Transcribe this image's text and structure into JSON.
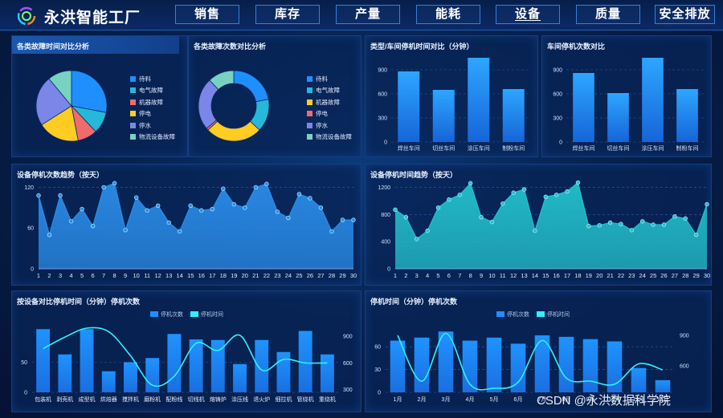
{
  "header": {
    "brand": "永洪智能工厂",
    "nav": [
      {
        "label": "销售",
        "active": false
      },
      {
        "label": "库存",
        "active": false
      },
      {
        "label": "产量",
        "active": false
      },
      {
        "label": "能耗",
        "active": false
      },
      {
        "label": "设备",
        "active": true
      },
      {
        "label": "质量",
        "active": false
      },
      {
        "label": "安全排放",
        "active": false
      }
    ]
  },
  "colors": {
    "bar": "#1e8fff",
    "area_blue": "#2a8ce8",
    "area_teal": "#23c1cc",
    "cyan_line": "#2ef2ff"
  },
  "watermark": "CSDN @永洪数据科学院",
  "chart_data": [
    {
      "id": "fault-time-pie",
      "type": "pie",
      "title": "各类故障时间对比分析",
      "legend": [
        "待料",
        "电气故障",
        "机器故障",
        "停电",
        "停水",
        "物流设备故障"
      ],
      "colors": [
        "#1f8fff",
        "#25b8d8",
        "#f06b6b",
        "#ffcc22",
        "#7b86e8",
        "#78d2c2"
      ],
      "values": [
        28,
        10,
        9,
        19,
        23,
        11
      ]
    },
    {
      "id": "fault-count-donut",
      "type": "pie",
      "title": "各类故障次数对比分析",
      "legend": [
        "待料",
        "电气故障",
        "机器故障",
        "停电",
        "停水",
        "物流设备故障"
      ],
      "colors": [
        "#1f8fff",
        "#25b8d8",
        "#ffcc22",
        "#f06b6b",
        "#7b86e8",
        "#78d2c2"
      ],
      "values": [
        22,
        15,
        26,
        1,
        24,
        12
      ]
    },
    {
      "id": "workshop-stop-time",
      "type": "bar",
      "title": "类型/车间停机时间对比（分钟）",
      "categories": [
        "焊丝车间",
        "切丝车间",
        "涂压车间",
        "制粉车间"
      ],
      "values": [
        880,
        650,
        1050,
        660
      ],
      "yticks": [
        0,
        300,
        600,
        900
      ],
      "ylim": [
        0,
        1100
      ]
    },
    {
      "id": "workshop-stop-count",
      "type": "bar",
      "title": "车间停机次数对比",
      "categories": [
        "焊丝车间",
        "切丝车间",
        "涂压车间",
        "制粉车间"
      ],
      "values": [
        860,
        610,
        1050,
        660
      ],
      "yticks": [
        0,
        300,
        600,
        900
      ],
      "ylim": [
        0,
        1100
      ]
    },
    {
      "id": "daily-stop-count",
      "type": "area",
      "title": "设备停机次数趋势（按天）",
      "categories": [
        "1",
        "2",
        "3",
        "4",
        "5",
        "6",
        "7",
        "8",
        "9",
        "10",
        "11",
        "12",
        "13",
        "14",
        "15",
        "16",
        "17",
        "18",
        "19",
        "20",
        "21",
        "22",
        "23",
        "24",
        "25",
        "26",
        "27",
        "28",
        "29",
        "30"
      ],
      "values": [
        108,
        50,
        108,
        70,
        88,
        63,
        120,
        126,
        57,
        105,
        86,
        93,
        68,
        55,
        93,
        86,
        88,
        118,
        95,
        90,
        120,
        125,
        84,
        75,
        110,
        104,
        90,
        55,
        72,
        72
      ],
      "yticks": [
        0,
        60,
        120
      ],
      "ylim": [
        0,
        130
      ]
    },
    {
      "id": "daily-stop-time",
      "type": "area",
      "title": "设备停机时间趋势（按天）",
      "categories": [
        "1",
        "2",
        "3",
        "4",
        "5",
        "6",
        "7",
        "8",
        "9",
        "10",
        "11",
        "12",
        "13",
        "14",
        "15",
        "16",
        "17",
        "18",
        "19",
        "20",
        "21",
        "22",
        "23",
        "24",
        "25",
        "26",
        "27",
        "28",
        "29",
        "30"
      ],
      "values": [
        870,
        760,
        440,
        560,
        900,
        1020,
        1090,
        1260,
        760,
        690,
        960,
        1120,
        1170,
        560,
        1060,
        1090,
        1140,
        1270,
        630,
        640,
        680,
        660,
        570,
        700,
        650,
        650,
        770,
        740,
        500,
        950
      ],
      "yticks": [
        0,
        400,
        800,
        1200
      ],
      "ylim": [
        0,
        1300
      ]
    },
    {
      "id": "equipment-stop",
      "type": "bar",
      "title": "按设备对比停机时间（分钟）停机次数",
      "legend": [
        "停机次数",
        "停机时间"
      ],
      "categories": [
        "包装机",
        "剥壳机",
        "成型机",
        "烘焙器",
        "搅拌机",
        "磨粉机",
        "配粉线",
        "切线机",
        "熔铸炉",
        "涂压线",
        "退火炉",
        "细拉机",
        "管绕机",
        "重绕机"
      ],
      "series": [
        {
          "name": "停机次数",
          "values": [
            105,
            63,
            105,
            35,
            50,
            57,
            97,
            88,
            87,
            47,
            87,
            67,
            102,
            63
          ]
        },
        {
          "name": "停机时间",
          "values": [
            760,
            890,
            990,
            950,
            680,
            350,
            450,
            820,
            740,
            910,
            520,
            640,
            600,
            600
          ]
        }
      ],
      "yticks_left": [
        0,
        50
      ],
      "ylim_left": [
        0,
        120
      ],
      "yticks_right": [
        300,
        600,
        900
      ],
      "ylim_right": [
        270,
        1080
      ]
    },
    {
      "id": "monthly-stop",
      "type": "bar",
      "title": "停机时间（分钟）停机次数",
      "legend": [
        "停机次数",
        "停机时间"
      ],
      "categories": [
        "1月",
        "2月",
        "3月",
        "4月",
        "5月",
        "6月",
        "7月",
        "8月",
        "9月",
        "10月",
        "11月",
        "12月"
      ],
      "series": [
        {
          "name": "停机次数",
          "values": [
            68,
            72,
            80,
            68,
            72,
            64,
            75,
            73,
            70,
            67,
            32,
            16
          ]
        },
        {
          "name": "停机时间",
          "values": [
            900,
            450,
            920,
            420,
            380,
            440,
            850,
            480,
            450,
            420,
            620,
            560
          ]
        }
      ],
      "yticks_left": [
        0,
        30,
        60
      ],
      "ylim_left": [
        0,
        95
      ],
      "yticks_right": [
        600,
        900
      ],
      "ylim_right": [
        340,
        1050
      ]
    }
  ]
}
